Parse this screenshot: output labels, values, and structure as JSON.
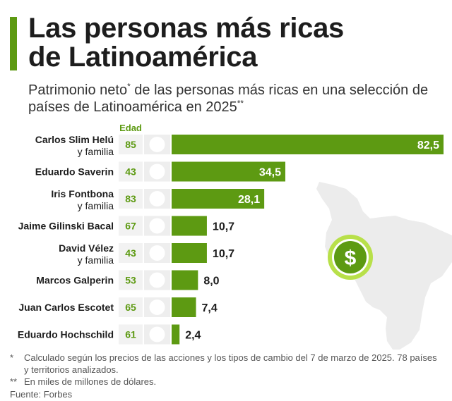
{
  "header": {
    "title_line1": "Las personas más ricas",
    "title_line2": "de Latinoamérica",
    "subtitle_part1": "Patrimonio neto",
    "subtitle_mark1": "*",
    "subtitle_part2": " de las personas más ricas en una selección de países de Latinoamérica en 2025",
    "subtitle_mark2": "**"
  },
  "age_header": "Edad",
  "colors": {
    "accent": "#5d9a12",
    "text": "#1d1d1d",
    "map": "#ececec"
  },
  "chart_data": {
    "type": "bar",
    "orientation": "horizontal",
    "title": "Las personas más ricas de Latinoamérica",
    "subtitle": "Patrimonio neto* de las personas más ricas en una selección de países de Latinoamérica en 2025**",
    "unit": "miles de millones de dólares",
    "decimal_separator": ",",
    "xlim": [
      0,
      82.5
    ],
    "categories": [
      "Carlos Slim Helú y familia",
      "Eduardo Saverin",
      "Iris Fontbona y familia",
      "Jaime Gilinski Bacal",
      "David Vélez y familia",
      "Marcos Galperin",
      "Juan Carlos Escotet",
      "Eduardo Hochschild"
    ],
    "values": [
      82.5,
      34.5,
      28.1,
      10.7,
      10.7,
      8.0,
      7.4,
      2.4
    ],
    "rows": [
      {
        "name": "Carlos Slim Helú",
        "sub": "y familia",
        "age": "85",
        "flag": "mexico-flag-icon",
        "value": 82.5,
        "value_label": "82,5"
      },
      {
        "name": "Eduardo Saverin",
        "sub": "",
        "age": "43",
        "flag": "brazil-flag-icon",
        "value": 34.5,
        "value_label": "34,5"
      },
      {
        "name": "Iris Fontbona",
        "sub": "y familia",
        "age": "83",
        "flag": "chile-flag-icon",
        "value": 28.1,
        "value_label": "28,1"
      },
      {
        "name": "Jaime Gilinski Bacal",
        "sub": "",
        "age": "67",
        "flag": "colombia-flag-icon",
        "value": 10.7,
        "value_label": "10,7"
      },
      {
        "name": "David Vélez",
        "sub": "y familia",
        "age": "43",
        "flag": "colombia-flag-icon",
        "value": 10.7,
        "value_label": "10,7"
      },
      {
        "name": "Marcos Galperin",
        "sub": "",
        "age": "53",
        "flag": "argentina-flag-icon",
        "value": 8.0,
        "value_label": "8,0"
      },
      {
        "name": "Juan Carlos Escotet",
        "sub": "",
        "age": "65",
        "flag": "venezuela-flag-icon",
        "value": 7.4,
        "value_label": "7,4"
      },
      {
        "name": "Eduardo Hochschild",
        "sub": "",
        "age": "61",
        "flag": "peru-flag-icon",
        "value": 2.4,
        "value_label": "2,4"
      }
    ]
  },
  "footnotes": {
    "note1_mark": "*",
    "note1_text": "Calculado según los precios de las acciones y los tipos de cambio del 7 de marzo de 2025. 78 países y territorios analizados.",
    "note2_mark": "**",
    "note2_text": "En miles de millones de dólares.",
    "source": "Fuente: Forbes"
  },
  "decor": {
    "dollar_icon": "dollar-coin-icon",
    "map": "south-america-map"
  }
}
